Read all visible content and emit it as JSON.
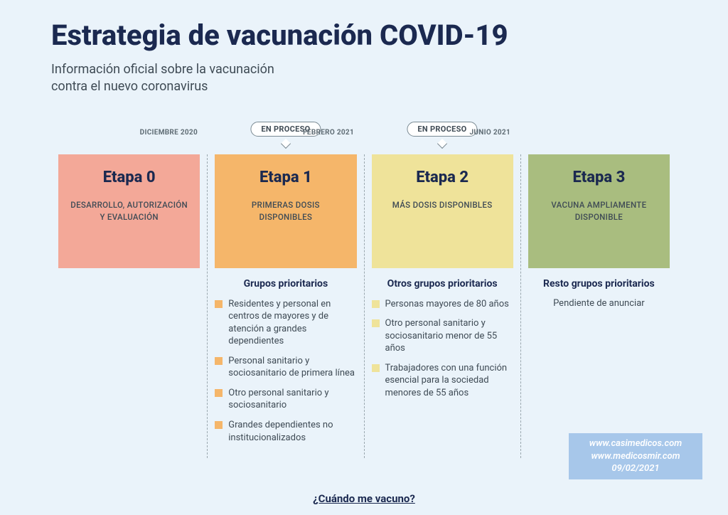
{
  "page": {
    "background_color": "#eaf3fa",
    "title_color": "#1b2950",
    "text_color": "#3f4b55",
    "muted_color": "#5f6c74",
    "divider_color": "#9aa7ae"
  },
  "header": {
    "title": "Estrategia de vacunación COVID-19",
    "title_fontsize": 40,
    "subtitle": "Información oficial sobre la vacunación\ncontra el nuevo coronavirus",
    "subtitle_fontsize": 18
  },
  "timeline": {
    "status_label": "EN PROCESO",
    "dates": [
      {
        "label": "DICIEMBRE 2020",
        "boundary_index": 0
      },
      {
        "label": "FEBRERO 2021",
        "boundary_index": 1
      },
      {
        "label": "JUNIO 2021",
        "boundary_index": 2
      }
    ],
    "stages": [
      {
        "key": "etapa0",
        "title": "Etapa 0",
        "desc": "DESARROLLO, AUTORIZACIÓN Y EVALUACIÓN",
        "card_bg": "#f3a898",
        "show_status": false,
        "groups_heading": null,
        "groups": [],
        "bullet_color": "#f3a898"
      },
      {
        "key": "etapa1",
        "title": "Etapa 1",
        "desc": "PRIMERAS DOSIS DISPONIBLES",
        "card_bg": "#f5b66a",
        "show_status": true,
        "groups_heading": "Grupos prioritarios",
        "groups": [
          "Residentes y personal en centros de mayores y de atención a grandes dependientes",
          "Personal sanitario y sociosanitario de primera línea",
          "Otro personal sanitario y sociosanitario",
          "Grandes dependientes no institucionalizados"
        ],
        "bullet_color": "#f5b66a"
      },
      {
        "key": "etapa2",
        "title": "Etapa 2",
        "desc": "MÁS DOSIS DISPONIBLES",
        "card_bg": "#efe39a",
        "show_status": true,
        "groups_heading": "Otros grupos prioritarios",
        "groups": [
          "Personas mayores de 80 años",
          "Otro personal sanitario y sociosanitario menor de 55 años",
          "Trabajadores con una función esencial para la sociedad menores de 55 años"
        ],
        "bullet_color": "#efe39a"
      },
      {
        "key": "etapa3",
        "title": "Etapa 3",
        "desc": "VACUNA AMPLIAMENTE DISPONIBLE",
        "card_bg": "#a9bd7f",
        "show_status": false,
        "groups_heading": "Resto grupos prioritarios",
        "groups": [],
        "groups_text": "Pendiente de anunciar",
        "bullet_color": "#a9bd7f"
      }
    ]
  },
  "watermark": {
    "bg": "#a7c7ea",
    "color": "#ffffff",
    "lines": [
      "www.casimedicos.com",
      "www.medicosmir.com",
      "09/02/2021"
    ]
  },
  "footer_link": {
    "label": "¿Cuándo me vacuno?",
    "color": "#1b2950"
  }
}
